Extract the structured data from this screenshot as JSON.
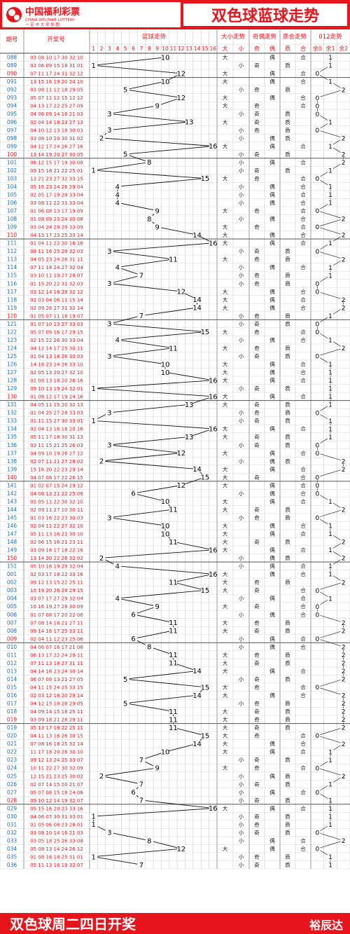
{
  "header": {
    "logo_cn": "中国福利彩票",
    "logo_en": "CHINA WELFARE LOTTERY",
    "logo_sub": "一 定 中 大 奖 彩 图",
    "title": "双色球蓝球走势"
  },
  "columns": {
    "period": "期号",
    "draw": "开奖号",
    "blue": "蓝球走势",
    "size": "大小走势",
    "parity": "奇偶走势",
    "prime": "质合走势",
    "mod": "012走势"
  },
  "sub_headers": {
    "blue": [
      "1",
      "2",
      "3",
      "4",
      "5",
      "6",
      "7",
      "8",
      "9",
      "10",
      "11",
      "12",
      "13",
      "14",
      "15",
      "16"
    ],
    "size": [
      "大",
      "小"
    ],
    "parity": [
      "奇",
      "偶"
    ],
    "prime": [
      "质",
      "合"
    ],
    "mod": [
      "余0",
      "余1",
      "余2"
    ]
  },
  "labels": {
    "big": "大",
    "small": "小",
    "odd": "奇",
    "even": "偶",
    "prime": "质",
    "composite": "合"
  },
  "footer": {
    "slogan": "双色球周二四日开奖",
    "author": "裕辰达"
  },
  "colors": {
    "red": "#e8141b",
    "header_text": "#e8141b",
    "period_blue": "#1f6fb5",
    "period_red": "#e8141b",
    "grid": "#c9c9c9",
    "sep": "#9a9a9a",
    "band": "#666666"
  },
  "chart_data": {
    "type": "table",
    "title": "双色球蓝球走势",
    "xlabel": "",
    "ylabel": "",
    "blue_range": [
      1,
      16
    ],
    "rows": [
      {
        "period": "088",
        "reds": "03 08 10 17 30 32",
        "blue": 10
      },
      {
        "period": "089",
        "reds": "03 06 09 15 18 31",
        "blue": 1
      },
      {
        "period": "090",
        "reds": "07 11 17 24 31 32",
        "blue": 12
      },
      {
        "period": "091",
        "reds": "13 15 16 19 20 24",
        "blue": 10
      },
      {
        "period": "092",
        "reds": "03 08 11 12 18 29",
        "blue": 5
      },
      {
        "period": "093",
        "reds": "05 07 11 12 15 12",
        "blue": 12
      },
      {
        "period": "094",
        "reds": "04 13 17 22 25 27",
        "blue": 9
      },
      {
        "period": "095",
        "reds": "04 06 09 14 16 21",
        "blue": 3
      },
      {
        "period": "096",
        "reds": "02 04 14 18 23 27",
        "blue": 13
      },
      {
        "period": "097",
        "reds": "04 10 12 13 18 30",
        "blue": 3
      },
      {
        "period": "098",
        "reds": "03 08 10 20 30 31",
        "blue": 2
      },
      {
        "period": "099",
        "reds": "04 12 17 24 26 27",
        "blue": 16
      },
      {
        "period": "100",
        "reds": "13 14 19 20 27 30",
        "blue": 5
      },
      {
        "period": "101",
        "reds": "08 12 15 17 19 30",
        "blue": 8
      },
      {
        "period": "102",
        "reds": "09 15 18 21 22 25",
        "blue": 1
      },
      {
        "period": "103",
        "reds": "12 21 23 27 32 33",
        "blue": 15
      },
      {
        "period": "104",
        "reds": "05 16 23 24 26 29",
        "blue": 4
      },
      {
        "period": "105",
        "reds": "02 05 17 19 29 33",
        "blue": 4
      },
      {
        "period": "106",
        "reds": "03 08 11 22 31 33",
        "blue": 4
      },
      {
        "period": "107",
        "reds": "01 06 08 13 17 19",
        "blue": 9
      },
      {
        "period": "108",
        "reds": "01 08 09 23 24 30",
        "blue": 8
      },
      {
        "period": "109",
        "reds": "03 04 24 28 29 33",
        "blue": 9
      },
      {
        "period": "110",
        "reds": "04 13 17 23 25 33",
        "blue": 14
      },
      {
        "period": "111",
        "reds": "01 04 11 22 30 16",
        "blue": 16
      },
      {
        "period": "112",
        "reds": "08 11 16 25 29 32",
        "blue": 3
      },
      {
        "period": "113",
        "reds": "04 05 23 24 26 31",
        "blue": 11
      },
      {
        "period": "114",
        "reds": "07 11 18 24 27 32",
        "blue": 4
      },
      {
        "period": "115",
        "reds": "03 10 11 19 27 28",
        "blue": 7
      },
      {
        "period": "116",
        "reds": "01 15 20 22 31 32",
        "blue": 3
      },
      {
        "period": "117",
        "reds": "03 12 14 16 29 32",
        "blue": 12
      },
      {
        "period": "118",
        "reds": "02 03 04 06 11 15",
        "blue": 14
      },
      {
        "period": "119",
        "reds": "02 09 26 27 31 32",
        "blue": 14
      },
      {
        "period": "120",
        "reds": "01 05 07 11 18 19",
        "blue": 7
      },
      {
        "period": "121",
        "reds": "01 07 10 13 27 33",
        "blue": 3
      },
      {
        "period": "122",
        "reds": "05 07 09 16 17 29",
        "blue": 15
      },
      {
        "period": "123",
        "reds": "02 15 22 26 30 33",
        "blue": 4
      },
      {
        "period": "124",
        "reds": "04 12 14 17 25 30",
        "blue": 11
      },
      {
        "period": "125",
        "reds": "01 04 13 18 26 30",
        "blue": 3
      },
      {
        "period": "126",
        "reds": "14 18 23 24 26 33",
        "blue": 10
      },
      {
        "period": "127",
        "reds": "02 05 13 20 27 32",
        "blue": 10
      },
      {
        "period": "128",
        "reds": "01 08 13 18 20 26",
        "blue": 16
      },
      {
        "period": "129",
        "reds": "09 10 13 19 24 32",
        "blue": 1
      },
      {
        "period": "130",
        "reds": "01 08 12 17 19 24",
        "blue": 16
      },
      {
        "period": "131",
        "reds": "04 05 11 15 20 32",
        "blue": 13
      },
      {
        "period": "132",
        "reds": "01 04 25 27 28 33",
        "blue": 3
      },
      {
        "period": "133",
        "reds": "01 11 15 27 30 33",
        "blue": 1
      },
      {
        "period": "134",
        "reds": "02 04 13 16 18 20",
        "blue": 16
      },
      {
        "period": "135",
        "reds": "05 11 17 18 30 31",
        "blue": 13
      },
      {
        "period": "136",
        "reds": "03 11 15 21 25 26",
        "blue": 3
      },
      {
        "period": "137",
        "reds": "04 09 10 19 26 27",
        "blue": 12
      },
      {
        "period": "138",
        "reds": "02 07 11 21 27 28",
        "blue": 2
      },
      {
        "period": "139",
        "reds": "15 16 20 22 23 29",
        "blue": 14
      },
      {
        "period": "140",
        "reds": "04 07 08 17 22 26",
        "blue": 15
      },
      {
        "period": "141",
        "reds": "01 02 07 15 24 29",
        "blue": 12
      },
      {
        "period": "142",
        "reds": "04 06 13 21 22 25",
        "blue": 6
      },
      {
        "period": "143",
        "reds": "02 05 11 22 30 32",
        "blue": 10
      },
      {
        "period": "144",
        "reds": "02 09 11 27 10 30",
        "blue": 11
      },
      {
        "period": "145",
        "reds": "01 03 16 22 23 30",
        "blue": 3
      },
      {
        "period": "146",
        "reds": "02 04 11 22 27 32",
        "blue": 10
      },
      {
        "period": "147",
        "reds": "05 11 13 16 21 30",
        "blue": 10
      },
      {
        "period": "148",
        "reds": "02 06 15 16 21 23",
        "blue": 11
      },
      {
        "period": "149",
        "reds": "03 09 16 17 18 22",
        "blue": 16
      },
      {
        "period": "150",
        "reds": "13 14 20 22 26 32",
        "blue": 2
      },
      {
        "period": "151",
        "reds": "05 10 16 19 29 32",
        "blue": 4
      },
      {
        "period": "001",
        "reds": "02 03 17 18 22 33",
        "blue": 16
      },
      {
        "period": "002",
        "reds": "09 12 13 15 22 25",
        "blue": 11
      },
      {
        "period": "003",
        "reds": "10 19 20 26 28 29",
        "blue": 15
      },
      {
        "period": "004",
        "reds": "03 07 17 27 29 32",
        "blue": 4
      },
      {
        "period": "005",
        "reds": "10 16 19 27 28 30",
        "blue": 9
      },
      {
        "period": "006",
        "reds": "01 07 08 17 20 22",
        "blue": 6
      },
      {
        "period": "007",
        "reds": "07 08 14 18 21 27",
        "blue": 11
      },
      {
        "period": "008",
        "reds": "09 14 16 17 25 33",
        "blue": 11
      },
      {
        "period": "009",
        "reds": "02 04 11 12 23 25",
        "blue": 6
      },
      {
        "period": "010",
        "reds": "04 06 07 16 17 21",
        "blue": 8
      },
      {
        "period": "011",
        "reds": "06 13 17 22 24 29",
        "blue": 11
      },
      {
        "period": "012",
        "reds": "07 11 13 18 27 31",
        "blue": 11
      },
      {
        "period": "013",
        "reds": "04 14 16 23 24 30",
        "blue": 14
      },
      {
        "period": "014",
        "reds": "06 07 09 13 21 27",
        "blue": 5
      },
      {
        "period": "015",
        "reds": "04 11 15 24 25 33",
        "blue": 15
      },
      {
        "period": "016",
        "reds": "02 03 12 16 20 29",
        "blue": 14
      },
      {
        "period": "017",
        "reds": "04 12 15 18 28 29",
        "blue": 5
      },
      {
        "period": "018",
        "reds": "04 09 14 15 18 25",
        "blue": 11
      },
      {
        "period": "019",
        "reds": "03 09 18 21 28 29",
        "blue": 11
      },
      {
        "period": "019",
        "reds": "05 13 17 18 22 25",
        "blue": 11
      },
      {
        "period": "020",
        "reds": "04 11 13 16 26 30",
        "blue": 15
      },
      {
        "period": "021",
        "reds": "07 08 16 18 25 32",
        "blue": 14
      },
      {
        "period": "022",
        "reds": "11 17 18 20 28 30",
        "blue": 10
      },
      {
        "period": "023",
        "reds": "09 12 13 24 25 33",
        "blue": 7
      },
      {
        "period": "024",
        "reds": "10 11 22 27 30 32",
        "blue": 9
      },
      {
        "period": "025",
        "reds": "12 15 21 23 25 30",
        "blue": 2
      },
      {
        "period": "026",
        "reds": "02 07 14 15 20 21",
        "blue": 7
      },
      {
        "period": "027",
        "reds": "05 07 08 15 18 24",
        "blue": 6
      },
      {
        "period": "028",
        "reds": "09 10 12 14 19 32",
        "blue": 7
      },
      {
        "period": "029",
        "reds": "05 15 16 20 23 33",
        "blue": 16
      },
      {
        "period": "030",
        "reds": "04 06 07 30 31 33",
        "blue": 1
      },
      {
        "period": "031",
        "reds": "01 05 06 08 23 28",
        "blue": 1
      },
      {
        "period": "032",
        "reds": "03 08 10 14 16 21",
        "blue": 3
      },
      {
        "period": "033",
        "reds": "03 05 18 25 26 33",
        "blue": 8
      },
      {
        "period": "034",
        "reds": "05 08 13 14 24 26",
        "blue": 12
      },
      {
        "period": "035",
        "reds": "01 08 16 18 25 31",
        "blue": 1
      },
      {
        "period": "036",
        "reds": "05 11 13 16 19 32",
        "blue": 7
      }
    ]
  }
}
